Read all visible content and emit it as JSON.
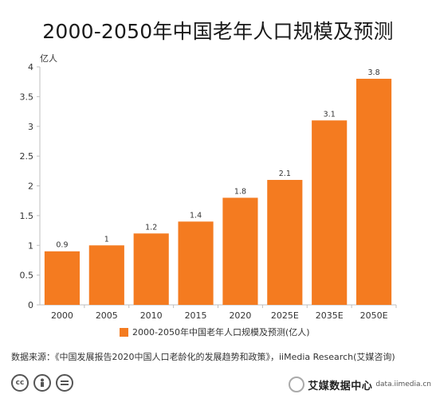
{
  "chart_data": {
    "type": "bar",
    "title": "2000-2050年中国老年人口规模及预测",
    "unit_label": "亿人",
    "categories": [
      "2000",
      "2005",
      "2010",
      "2015",
      "2020",
      "2025E",
      "2035E",
      "2050E"
    ],
    "series": [
      {
        "name": "2000-2050年中国老年人口规模及预测(亿人)",
        "values": [
          0.9,
          1,
          1.2,
          1.4,
          1.8,
          2.1,
          3.1,
          3.8
        ],
        "color": "#f47b20"
      }
    ],
    "value_labels": [
      "0.9",
      "1",
      "1.2",
      "1.4",
      "1.8",
      "2.1",
      "3.1",
      "3.8"
    ],
    "yticks": [
      "0",
      "0.5",
      "1",
      "1.5",
      "2",
      "2.5",
      "3",
      "3.5",
      "4"
    ],
    "ylim": [
      0,
      4
    ],
    "grid": false,
    "legend_position": "bottom"
  },
  "source": "数据来源：《中国发展报告2020中国人口老龄化的发展趋势和政策》，iiMedia Research(艾媒咨询)",
  "footer": {
    "license_icons": [
      "cc-icon",
      "by-icon",
      "equal-icon"
    ],
    "watermark": "艾媒数据中心",
    "watermark_sub": "data.iimedia.cn",
    "icon_color": "#555555"
  }
}
